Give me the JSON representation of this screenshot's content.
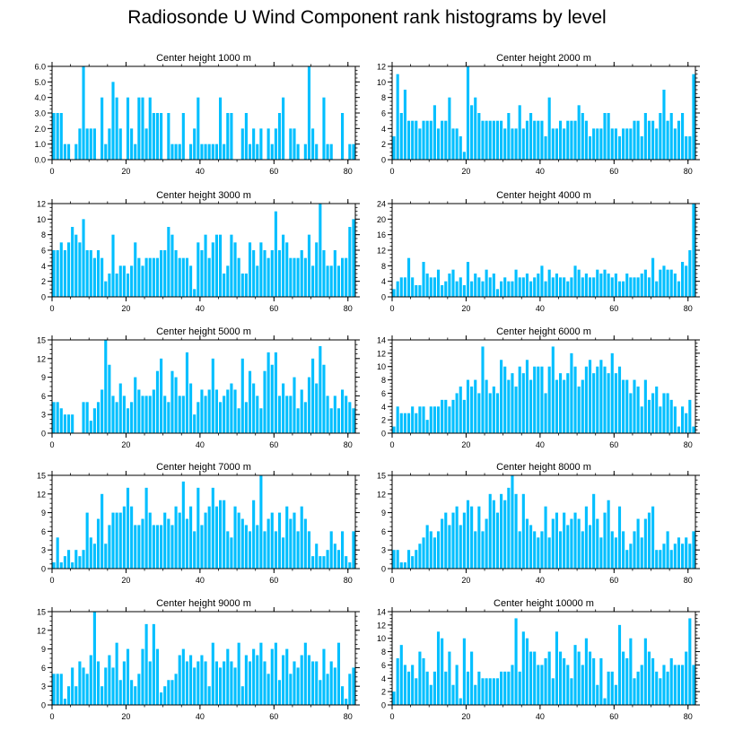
{
  "figure_title": "Radiosonde U Wind Component rank histograms by level",
  "bar_color": "#00bfff",
  "chart_data": [
    {
      "type": "bar",
      "title": "Center height 1000 m",
      "xlim": [
        0,
        82
      ],
      "ylim": [
        0,
        6
      ],
      "xticks": [
        0,
        20,
        40,
        60,
        80
      ],
      "yticks": [
        0,
        1,
        2,
        3,
        4,
        5,
        6
      ],
      "ytick_labels": [
        "0.0",
        "1.0",
        "2.0",
        "3.0",
        "4.0",
        "5.0",
        "6.0"
      ],
      "x_start": 0,
      "values": [
        3,
        3,
        3,
        1,
        1,
        0,
        1,
        2,
        6,
        2,
        2,
        2,
        0,
        4,
        1,
        2,
        5,
        4,
        2,
        0,
        4,
        2,
        1,
        4,
        4,
        2,
        4,
        3,
        3,
        3,
        0,
        3,
        1,
        1,
        1,
        3,
        0,
        1,
        2,
        4,
        1,
        1,
        1,
        1,
        1,
        4,
        1,
        3,
        3,
        0,
        0,
        2,
        3,
        1,
        2,
        1,
        2,
        0,
        2,
        1,
        2,
        3,
        4,
        0,
        2,
        2,
        1,
        0,
        1,
        6,
        2,
        1,
        0,
        4,
        1,
        1,
        0,
        0,
        3,
        0,
        1,
        1
      ]
    },
    {
      "type": "bar",
      "title": "Center height 2000 m",
      "xlim": [
        0,
        82
      ],
      "ylim": [
        0,
        12
      ],
      "xticks": [
        0,
        20,
        40,
        60,
        80
      ],
      "yticks": [
        0,
        2,
        4,
        6,
        8,
        10,
        12
      ],
      "ytick_labels": [
        "0",
        "2",
        "4",
        "6",
        "8",
        "10",
        "12"
      ],
      "x_start": 0,
      "values": [
        3,
        11,
        6,
        9,
        5,
        5,
        5,
        4,
        5,
        5,
        5,
        7,
        4,
        5,
        5,
        8,
        4,
        4,
        3,
        1,
        12,
        7,
        8,
        6,
        5,
        5,
        5,
        5,
        5,
        5,
        4,
        6,
        4,
        4,
        7,
        4,
        5,
        6,
        5,
        5,
        5,
        3,
        8,
        4,
        4,
        5,
        4,
        5,
        5,
        5,
        7,
        6,
        5,
        3,
        4,
        4,
        4,
        6,
        6,
        4,
        4,
        3,
        4,
        4,
        4,
        5,
        5,
        3,
        6,
        5,
        5,
        4,
        6,
        9,
        5,
        6,
        4,
        5,
        6,
        3,
        3,
        11
      ]
    },
    {
      "type": "bar",
      "title": "Center height 3000 m",
      "xlim": [
        0,
        82
      ],
      "ylim": [
        0,
        12
      ],
      "xticks": [
        0,
        20,
        40,
        60,
        80
      ],
      "yticks": [
        0,
        2,
        4,
        6,
        8,
        10,
        12
      ],
      "ytick_labels": [
        "0",
        "2",
        "4",
        "6",
        "8",
        "10",
        "12"
      ],
      "x_start": 0,
      "values": [
        6,
        6,
        7,
        6,
        7,
        9,
        8,
        7,
        10,
        6,
        6,
        5,
        6,
        5,
        2,
        3,
        8,
        3,
        4,
        4,
        3,
        4,
        7,
        5,
        4,
        5,
        5,
        5,
        5,
        6,
        6,
        9,
        8,
        6,
        5,
        5,
        5,
        4,
        1,
        7,
        6,
        8,
        5,
        7,
        8,
        8,
        3,
        4,
        8,
        7,
        5,
        3,
        3,
        7,
        6,
        4,
        7,
        6,
        5,
        6,
        11,
        6,
        8,
        7,
        5,
        5,
        5,
        6,
        5,
        8,
        4,
        7,
        12,
        6,
        4,
        4,
        6,
        4,
        5,
        5,
        9,
        10
      ]
    },
    {
      "type": "bar",
      "title": "Center height 4000 m",
      "xlim": [
        0,
        82
      ],
      "ylim": [
        0,
        24
      ],
      "xticks": [
        0,
        20,
        40,
        60,
        80
      ],
      "yticks": [
        0,
        4,
        8,
        12,
        16,
        20,
        24
      ],
      "ytick_labels": [
        "0",
        "4",
        "8",
        "12",
        "16",
        "20",
        "24"
      ],
      "x_start": 0,
      "values": [
        2,
        4,
        5,
        5,
        10,
        5,
        3,
        3,
        9,
        6,
        5,
        5,
        7,
        3,
        4,
        6,
        7,
        4,
        5,
        3,
        9,
        4,
        6,
        5,
        4,
        7,
        5,
        6,
        2,
        4,
        5,
        4,
        4,
        7,
        5,
        5,
        6,
        4,
        5,
        6,
        8,
        4,
        7,
        5,
        6,
        5,
        5,
        4,
        5,
        8,
        7,
        5,
        6,
        5,
        5,
        7,
        6,
        7,
        6,
        5,
        6,
        4,
        4,
        6,
        5,
        5,
        5,
        6,
        7,
        5,
        10,
        4,
        7,
        8,
        7,
        7,
        6,
        4,
        9,
        8,
        12,
        24
      ]
    },
    {
      "type": "bar",
      "title": "Center height 5000 m",
      "xlim": [
        0,
        82
      ],
      "ylim": [
        0,
        15
      ],
      "xticks": [
        0,
        20,
        40,
        60,
        80
      ],
      "yticks": [
        0,
        3,
        6,
        9,
        12,
        15
      ],
      "ytick_labels": [
        "0",
        "3",
        "6",
        "9",
        "12",
        "15"
      ],
      "x_start": 0,
      "values": [
        5,
        5,
        4,
        3,
        3,
        3,
        0,
        0,
        5,
        5,
        2,
        4,
        5,
        7,
        15,
        11,
        6,
        5,
        8,
        6,
        4,
        5,
        9,
        7,
        6,
        6,
        6,
        7,
        10,
        12,
        6,
        5,
        10,
        9,
        6,
        6,
        13,
        8,
        3,
        5,
        7,
        6,
        7,
        12,
        7,
        5,
        6,
        7,
        8,
        7,
        4,
        12,
        5,
        10,
        8,
        6,
        4,
        10,
        13,
        11,
        13,
        6,
        8,
        6,
        6,
        9,
        4,
        7,
        5,
        9,
        12,
        8,
        14,
        11,
        6,
        4,
        6,
        4,
        7,
        6,
        5,
        4
      ]
    },
    {
      "type": "bar",
      "title": "Center height 6000 m",
      "xlim": [
        0,
        82
      ],
      "ylim": [
        0,
        14
      ],
      "xticks": [
        0,
        20,
        40,
        60,
        80
      ],
      "yticks": [
        0,
        2,
        4,
        6,
        8,
        10,
        12,
        14
      ],
      "ytick_labels": [
        "0",
        "2",
        "4",
        "6",
        "8",
        "10",
        "12",
        "14"
      ],
      "x_start": 0,
      "values": [
        1,
        4,
        3,
        3,
        3,
        4,
        3,
        4,
        4,
        2,
        4,
        4,
        4,
        5,
        5,
        4,
        5,
        6,
        7,
        5,
        8,
        7,
        8,
        6,
        13,
        8,
        6,
        7,
        6,
        11,
        10,
        8,
        9,
        7,
        10,
        9,
        11,
        8,
        10,
        10,
        10,
        6,
        10,
        13,
        8,
        9,
        8,
        9,
        12,
        10,
        7,
        8,
        10,
        11,
        9,
        10,
        11,
        10,
        9,
        12,
        9,
        10,
        8,
        8,
        6,
        8,
        7,
        4,
        8,
        5,
        6,
        7,
        4,
        6,
        6,
        5,
        4,
        1,
        4,
        3,
        5,
        1
      ]
    },
    {
      "type": "bar",
      "title": "Center height 7000 m",
      "xlim": [
        0,
        82
      ],
      "ylim": [
        0,
        15
      ],
      "xticks": [
        0,
        20,
        40,
        60,
        80
      ],
      "yticks": [
        0,
        3,
        6,
        9,
        12,
        15
      ],
      "ytick_labels": [
        "0",
        "3",
        "6",
        "9",
        "12",
        "15"
      ],
      "x_start": 0,
      "values": [
        1,
        5,
        1,
        2,
        3,
        1,
        3,
        2,
        3,
        9,
        5,
        4,
        8,
        12,
        4,
        7,
        9,
        9,
        9,
        10,
        13,
        10,
        7,
        7,
        8,
        13,
        9,
        7,
        7,
        7,
        9,
        8,
        7,
        10,
        9,
        14,
        8,
        10,
        6,
        13,
        7,
        9,
        10,
        13,
        10,
        11,
        11,
        6,
        5,
        10,
        9,
        8,
        7,
        6,
        11,
        7,
        15,
        6,
        8,
        9,
        6,
        9,
        5,
        10,
        8,
        9,
        6,
        10,
        8,
        6,
        2,
        4,
        2,
        2,
        3,
        6,
        4,
        3,
        6,
        2,
        1,
        6
      ]
    },
    {
      "type": "bar",
      "title": "Center height 8000 m",
      "xlim": [
        0,
        82
      ],
      "ylim": [
        0,
        15
      ],
      "xticks": [
        0,
        20,
        40,
        60,
        80
      ],
      "yticks": [
        0,
        3,
        6,
        9,
        12,
        15
      ],
      "ytick_labels": [
        "0",
        "3",
        "6",
        "9",
        "12",
        "15"
      ],
      "x_start": 0,
      "values": [
        3,
        3,
        1,
        1,
        3,
        2,
        3,
        4,
        5,
        7,
        6,
        5,
        6,
        8,
        9,
        7,
        9,
        10,
        7,
        9,
        11,
        10,
        6,
        10,
        6,
        8,
        12,
        11,
        9,
        12,
        11,
        13,
        15,
        12,
        6,
        12,
        8,
        7,
        6,
        5,
        6,
        10,
        5,
        8,
        9,
        6,
        9,
        7,
        8,
        9,
        8,
        6,
        10,
        7,
        12,
        8,
        5,
        9,
        11,
        6,
        5,
        10,
        6,
        3,
        4,
        6,
        8,
        5,
        8,
        9,
        10,
        3,
        3,
        4,
        6,
        3,
        4,
        5,
        4,
        5,
        4,
        6
      ]
    },
    {
      "type": "bar",
      "title": "Center height 9000 m",
      "xlim": [
        0,
        82
      ],
      "ylim": [
        0,
        15
      ],
      "xticks": [
        0,
        20,
        40,
        60,
        80
      ],
      "yticks": [
        0,
        3,
        6,
        9,
        12,
        15
      ],
      "ytick_labels": [
        "0",
        "3",
        "6",
        "9",
        "12",
        "15"
      ],
      "x_start": 0,
      "values": [
        5,
        5,
        5,
        1,
        3,
        6,
        3,
        7,
        6,
        5,
        8,
        15,
        7,
        3,
        6,
        8,
        6,
        10,
        4,
        7,
        9,
        4,
        3,
        5,
        9,
        13,
        7,
        13,
        9,
        2,
        3,
        4,
        4,
        5,
        8,
        9,
        7,
        8,
        6,
        7,
        8,
        7,
        3,
        10,
        7,
        6,
        7,
        9,
        7,
        6,
        10,
        3,
        8,
        7,
        9,
        8,
        10,
        7,
        5,
        9,
        10,
        4,
        8,
        9,
        5,
        7,
        6,
        8,
        10,
        8,
        7,
        7,
        4,
        9,
        5,
        7,
        6,
        10,
        3,
        1,
        5,
        6
      ]
    },
    {
      "type": "bar",
      "title": "Center height 10000 m",
      "xlim": [
        0,
        82
      ],
      "ylim": [
        0,
        14
      ],
      "xticks": [
        0,
        20,
        40,
        60,
        80
      ],
      "yticks": [
        0,
        2,
        4,
        6,
        8,
        10,
        12,
        14
      ],
      "ytick_labels": [
        "0",
        "2",
        "4",
        "6",
        "8",
        "10",
        "12",
        "14"
      ],
      "x_start": 0,
      "values": [
        2,
        7,
        9,
        6,
        5,
        6,
        4,
        8,
        7,
        5,
        3,
        5,
        11,
        10,
        5,
        8,
        3,
        6,
        1,
        10,
        5,
        8,
        3,
        5,
        4,
        4,
        4,
        4,
        4,
        5,
        5,
        5,
        6,
        13,
        5,
        11,
        10,
        8,
        8,
        6,
        6,
        7,
        8,
        4,
        11,
        8,
        7,
        6,
        4,
        9,
        8,
        6,
        10,
        8,
        7,
        3,
        7,
        1,
        5,
        5,
        3,
        12,
        8,
        7,
        10,
        4,
        5,
        6,
        10,
        8,
        7,
        5,
        4,
        6,
        5,
        7,
        6,
        6,
        6,
        8,
        13,
        6
      ]
    }
  ]
}
